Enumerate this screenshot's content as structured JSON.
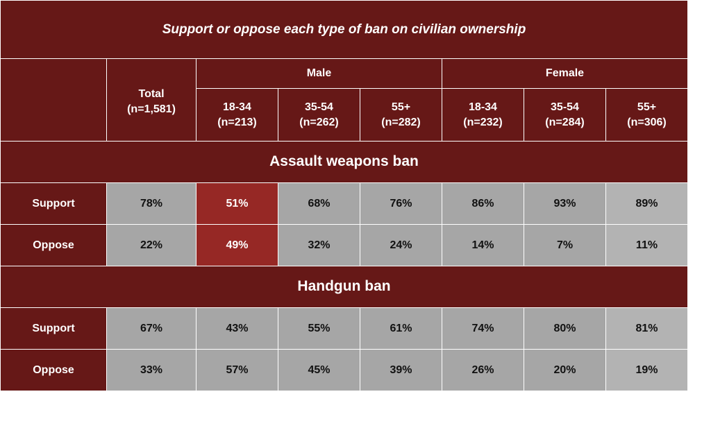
{
  "chart_data": {
    "type": "table",
    "title": "Support or oppose each type of ban on civilian ownership",
    "groups": [
      {
        "label": "",
        "span": 1
      },
      {
        "label": "Male",
        "span": 3
      },
      {
        "label": "Female",
        "span": 3
      }
    ],
    "columns": [
      {
        "label": "Total",
        "n": "(n=1,581)"
      },
      {
        "label": "18-34",
        "n": "(n=213)"
      },
      {
        "label": "35-54",
        "n": "(n=262)"
      },
      {
        "label": "55+",
        "n": "(n=282)"
      },
      {
        "label": "18-34",
        "n": "(n=232)"
      },
      {
        "label": "35-54",
        "n": "(n=284)"
      },
      {
        "label": "55+",
        "n": "(n=306)"
      }
    ],
    "sections": [
      {
        "title": "Assault weapons ban",
        "rows": [
          {
            "label": "Support",
            "values": [
              "78%",
              "51%",
              "68%",
              "76%",
              "86%",
              "93%",
              "89%"
            ]
          },
          {
            "label": "Oppose",
            "values": [
              "22%",
              "49%",
              "32%",
              "24%",
              "14%",
              "7%",
              "11%"
            ]
          }
        ]
      },
      {
        "title": "Handgun ban",
        "rows": [
          {
            "label": "Support",
            "values": [
              "67%",
              "43%",
              "55%",
              "61%",
              "74%",
              "80%",
              "81%"
            ]
          },
          {
            "label": "Oppose",
            "values": [
              "33%",
              "57%",
              "45%",
              "39%",
              "26%",
              "20%",
              "19%"
            ]
          }
        ]
      }
    ],
    "highlight": {
      "section": 0,
      "column": 1
    },
    "colors": {
      "header_bg": "#661817",
      "cell_bg": "#a6a6a6",
      "highlight_bg": "#962825",
      "header_text": "#ffffff",
      "cell_text": "#111111",
      "gridline": "#ffffff"
    }
  }
}
